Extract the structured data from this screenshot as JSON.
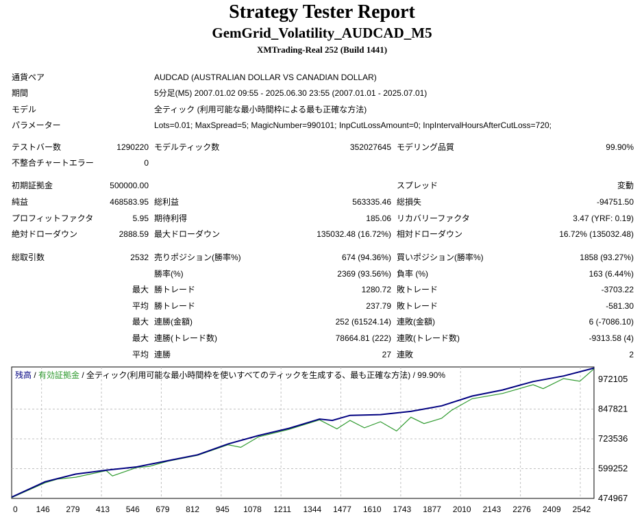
{
  "header": {
    "title": "Strategy Tester Report",
    "subtitle": "GemGrid_Volatility_AUDCAD_M5",
    "server": "XMTrading-Real 252 (Build 1441)"
  },
  "info": {
    "symbol_label": "通貨ペア",
    "symbol_value": "AUDCAD (AUSTRALIAN DOLLAR VS CANADIAN DOLLAR)",
    "period_label": "期間",
    "period_value": "5分足(M5) 2007.01.02 09:55 - 2025.06.30 23:55 (2007.01.01 - 2025.07.01)",
    "model_label": "モデル",
    "model_value": "全ティック (利用可能な最小時間枠による最も正確な方法)",
    "params_label": "パラメーター",
    "params_value": "Lots=0.01; MaxSpread=5; MagicNumber=990101; InpCutLossAmount=0; InpIntervalHoursAfterCutLoss=720;"
  },
  "stats": {
    "bars_label": "テストバー数",
    "bars_value": "1290220",
    "ticks_label": "モデルティック数",
    "ticks_value": "352027645",
    "quality_label": "モデリング品質",
    "quality_value": "99.90%",
    "mismatch_label": "不整合チャートエラー",
    "mismatch_value": "0",
    "deposit_label": "初期証拠金",
    "deposit_value": "500000.00",
    "spread_label": "スプレッド",
    "spread_value": "変動",
    "net_label": "純益",
    "net_value": "468583.95",
    "gross_profit_label": "総利益",
    "gross_profit_value": "563335.46",
    "gross_loss_label": "総損失",
    "gross_loss_value": "-94751.50",
    "pf_label": "プロフィットファクタ",
    "pf_value": "5.95",
    "payoff_label": "期待利得",
    "payoff_value": "185.06",
    "recovery_label": "リカバリーファクタ",
    "recovery_value": "3.47 (YRF: 0.19)",
    "abs_dd_label": "絶対ドローダウン",
    "abs_dd_value": "2888.59",
    "max_dd_label": "最大ドローダウン",
    "max_dd_value": "135032.48 (16.72%)",
    "rel_dd_label": "相対ドローダウン",
    "rel_dd_value": "16.72% (135032.48)",
    "trades_label": "総取引数",
    "trades_value": "2532",
    "short_label": "売りポジション(勝率%)",
    "short_value": "674 (94.36%)",
    "long_label": "買いポジション(勝率%)",
    "long_value": "1858 (93.27%)",
    "win_pct_label": "勝率(%)",
    "win_pct_value": "2369 (93.56%)",
    "loss_pct_label": "負率 (%)",
    "loss_pct_value": "163 (6.44%)",
    "max_word": "最大",
    "avg_word": "平均",
    "largest_win_label": "勝トレード",
    "largest_win_value": "1280.72",
    "largest_loss_label": "敗トレード",
    "largest_loss_value": "-3703.22",
    "avg_win_label": "勝トレード",
    "avg_win_value": "237.79",
    "avg_loss_label": "敗トレード",
    "avg_loss_value": "-581.30",
    "cons_win_amt_label": "連勝(金額)",
    "cons_win_amt_value": "252 (61524.14)",
    "cons_loss_amt_label": "連敗(金額)",
    "cons_loss_amt_value": "6 (-7086.10)",
    "cons_win_cnt_label": "連勝(トレード数)",
    "cons_win_cnt_value": "78664.81 (222)",
    "cons_loss_cnt_label": "連敗(トレード数)",
    "cons_loss_cnt_value": "-9313.58 (4)",
    "avg_cons_win_label": "連勝",
    "avg_cons_win_value": "27",
    "avg_cons_loss_label": "連敗",
    "avg_cons_loss_value": "2"
  },
  "chart_data": {
    "type": "line",
    "legend": {
      "balance": "残高",
      "sep": " / ",
      "equity": "有効証拠金",
      "rest": " / 全ティック(利用可能な最小時間枠を使いすべてのティックを生成する、最も正確な方法) / 99.90%"
    },
    "colors": {
      "balance": "#000080",
      "equity": "#2e9a2e",
      "grid": "#c0c0c0"
    },
    "x_ticks": [
      "0",
      "146",
      "279",
      "413",
      "546",
      "679",
      "812",
      "945",
      "1078",
      "1211",
      "1344",
      "1477",
      "1610",
      "1743",
      "1877",
      "2010",
      "2143",
      "2276",
      "2409",
      "2542"
    ],
    "y_ticks": [
      "972105",
      "847821",
      "723536",
      "599252",
      "474967"
    ],
    "xlim": [
      0,
      2542
    ],
    "ylim": [
      474967,
      972105
    ],
    "series": [
      {
        "key": "balance",
        "x": [
          0,
          146,
          279,
          413,
          546,
          679,
          812,
          945,
          1078,
          1211,
          1344,
          1400,
          1477,
          1610,
          1743,
          1877,
          2010,
          2143,
          2276,
          2409,
          2542
        ],
        "y": [
          480000,
          538000,
          567000,
          582000,
          594000,
          617000,
          640000,
          681000,
          713000,
          740000,
          775000,
          770000,
          789000,
          792000,
          804000,
          825000,
          862000,
          885000,
          917000,
          938000,
          968000
        ]
      },
      {
        "key": "equity",
        "x": [
          0,
          146,
          200,
          279,
          413,
          440,
          546,
          600,
          679,
          812,
          945,
          1000,
          1078,
          1211,
          1344,
          1420,
          1477,
          1540,
          1610,
          1680,
          1743,
          1800,
          1877,
          1920,
          2010,
          2143,
          2276,
          2320,
          2409,
          2480,
          2542
        ],
        "y": [
          478000,
          534000,
          548000,
          555000,
          580000,
          560000,
          592000,
          596000,
          615000,
          638000,
          678000,
          668000,
          708000,
          736000,
          772000,
          738000,
          770000,
          742000,
          765000,
          730000,
          782000,
          758000,
          778000,
          808000,
          852000,
          872000,
          905000,
          890000,
          928000,
          918000,
          965000
        ]
      }
    ]
  }
}
